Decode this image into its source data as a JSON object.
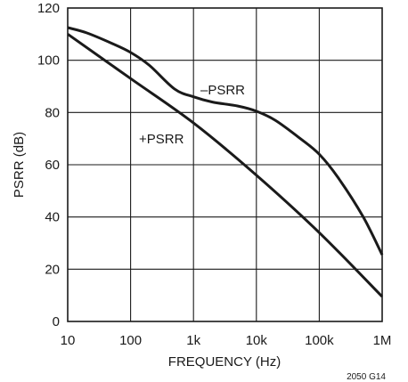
{
  "chart_data": {
    "type": "line",
    "title": "",
    "xlabel": "FREQUENCY (Hz)",
    "ylabel": "PSRR (dB)",
    "x_scale": "log",
    "xlim": [
      10,
      1000000
    ],
    "ylim": [
      0,
      120
    ],
    "grid": true,
    "x_ticks": [
      {
        "value": 10,
        "label": "10"
      },
      {
        "value": 100,
        "label": "100"
      },
      {
        "value": 1000,
        "label": "1k"
      },
      {
        "value": 10000,
        "label": "10k"
      },
      {
        "value": 100000,
        "label": "100k"
      },
      {
        "value": 1000000,
        "label": "1M"
      }
    ],
    "y_ticks": [
      {
        "value": 0,
        "label": "0"
      },
      {
        "value": 20,
        "label": "20"
      },
      {
        "value": 40,
        "label": "40"
      },
      {
        "value": 60,
        "label": "60"
      },
      {
        "value": 80,
        "label": "80"
      },
      {
        "value": 100,
        "label": "100"
      },
      {
        "value": 120,
        "label": "120"
      }
    ],
    "series": [
      {
        "name": "–PSRR",
        "color": "#1a1a1a",
        "x": [
          10,
          20,
          50,
          100,
          200,
          500,
          1000,
          2000,
          5000,
          10000,
          20000,
          50000,
          100000,
          200000,
          500000,
          1000000
        ],
        "y": [
          112.5,
          110.5,
          106.5,
          103,
          98,
          89,
          86,
          84,
          82.5,
          80.5,
          77,
          70,
          64,
          55,
          40,
          25.5
        ]
      },
      {
        "name": "+PSRR",
        "color": "#1a1a1a",
        "x": [
          10,
          100,
          1000,
          10000,
          100000,
          1000000
        ],
        "y": [
          110,
          93,
          76,
          56,
          34,
          9.5
        ]
      }
    ],
    "annotation": "2050 G14"
  }
}
